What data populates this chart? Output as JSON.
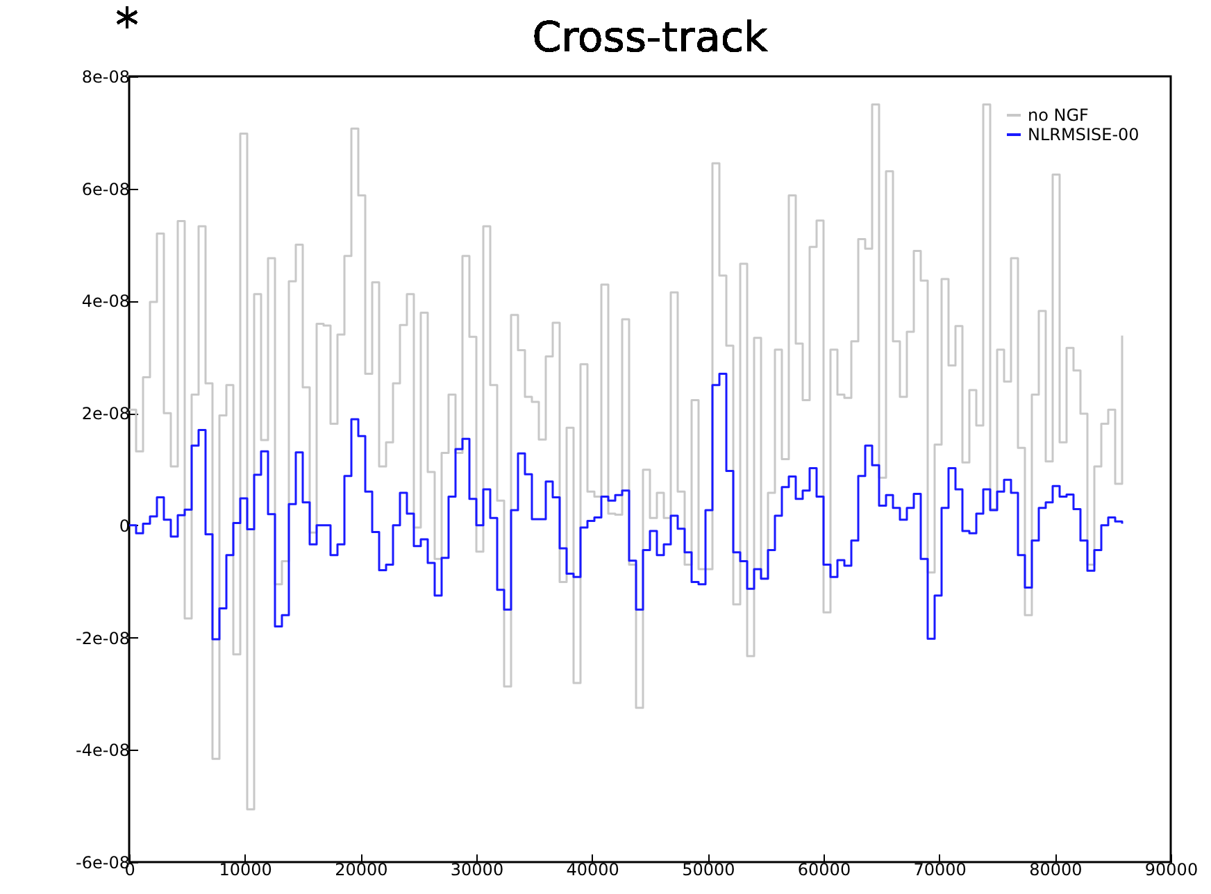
{
  "chart_data": {
    "type": "step",
    "title": "Cross-track",
    "annotations": [
      "*"
    ],
    "x": [
      0,
      600,
      1200,
      1800,
      2400,
      3000,
      3600,
      4200,
      4800,
      5400,
      6000,
      6600,
      7200,
      7800,
      8400,
      9000,
      9600,
      10200,
      10800,
      11400,
      12000,
      12600,
      13200,
      13800,
      14400,
      15000,
      15600,
      16200,
      16800,
      17400,
      18000,
      18600,
      19200,
      19800,
      20400,
      21000,
      21600,
      22200,
      22800,
      23400,
      24000,
      24600,
      25200,
      25800,
      26400,
      27000,
      27600,
      28200,
      28800,
      29400,
      30000,
      30600,
      31200,
      31800,
      32400,
      33000,
      33600,
      34200,
      34800,
      35400,
      36000,
      36600,
      37200,
      37800,
      38400,
      39000,
      39600,
      40200,
      40800,
      41400,
      42000,
      42600,
      43200,
      43800,
      44400,
      45000,
      45600,
      46200,
      46800,
      47400,
      48000,
      48600,
      49200,
      49800,
      50400,
      51000,
      51600,
      52200,
      52800,
      53400,
      54000,
      54600,
      55200,
      55800,
      56400,
      57000,
      57600,
      58200,
      58800,
      59400,
      60000,
      60600,
      61200,
      61800,
      62400,
      63000,
      63600,
      64200,
      64800,
      65400,
      66000,
      66600,
      67200,
      67800,
      68400,
      69000,
      69600,
      70200,
      70800,
      71400,
      72000,
      72600,
      73200,
      73800,
      74400,
      75000,
      75600,
      76200,
      76800,
      77400,
      78000,
      78600,
      79200,
      79800,
      80400,
      81000,
      81600,
      82200,
      82800,
      83400,
      84000,
      84600,
      85200,
      85800
    ],
    "series": [
      {
        "name": "no NGF",
        "color": "#c8c8c8",
        "values": [
          2.06e-08,
          1.32e-08,
          2.64e-08,
          3.98e-08,
          5.2e-08,
          2e-08,
          1.05e-08,
          5.42e-08,
          -1.66e-08,
          2.33e-08,
          5.33e-08,
          2.53e-08,
          -4.16e-08,
          1.96e-08,
          2.5e-08,
          -2.3e-08,
          6.98e-08,
          -5.06e-08,
          4.12e-08,
          1.52e-08,
          4.76e-08,
          -1.05e-08,
          -6.4e-09,
          4.35e-08,
          5e-08,
          2.46e-08,
          -1.3e-09,
          3.59e-08,
          3.56e-08,
          1.81e-08,
          3.4e-08,
          4.8e-08,
          7.07e-08,
          5.88e-08,
          2.7e-08,
          4.33e-08,
          1.05e-08,
          1.48e-08,
          2.53e-08,
          3.57e-08,
          4.12e-08,
          -4e-10,
          3.79e-08,
          9.5e-09,
          -6e-09,
          1.29e-08,
          2.33e-08,
          1.29e-08,
          4.8e-08,
          3.36e-08,
          -4.7e-09,
          5.33e-08,
          2.5e-08,
          4.4e-09,
          -2.87e-08,
          3.75e-08,
          3.12e-08,
          2.29e-08,
          2.2e-08,
          1.53e-08,
          3.01e-08,
          3.61e-08,
          -1.01e-08,
          1.74e-08,
          -2.81e-08,
          2.87e-08,
          6e-09,
          5.1e-09,
          4.29e-08,
          2.1e-09,
          1.9e-09,
          3.67e-08,
          -7e-09,
          -3.25e-08,
          9.9e-09,
          1.3e-09,
          5.8e-09,
          1.3e-09,
          4.15e-08,
          6e-09,
          -7e-09,
          2.23e-08,
          -7.8e-09,
          -7.8e-09,
          6.45e-08,
          4.45e-08,
          3.2e-08,
          -1.41e-08,
          4.66e-08,
          -2.33e-08,
          3.34e-08,
          -9.5e-09,
          5.8e-09,
          3.13e-08,
          1.18e-08,
          5.88e-08,
          3.24e-08,
          2.23e-08,
          4.96e-08,
          5.43e-08,
          -1.55e-08,
          3.13e-08,
          2.33e-08,
          2.27e-08,
          3.28e-08,
          5.1e-08,
          4.93e-08,
          7.5e-08,
          8.5e-09,
          6.31e-08,
          3.28e-08,
          2.29e-08,
          3.45e-08,
          4.89e-08,
          4.36e-08,
          -8.4e-09,
          1.44e-08,
          4.39e-08,
          2.85e-08,
          3.55e-08,
          1.12e-08,
          2.41e-08,
          1.78e-08,
          7.5e-08,
          2.9e-09,
          3.13e-08,
          2.56e-08,
          4.76e-08,
          1.38e-08,
          -1.6e-08,
          2.33e-08,
          3.82e-08,
          1.14e-08,
          6.25e-08,
          1.48e-08,
          3.16e-08,
          2.76e-08,
          1.99e-08,
          -7e-09,
          1.05e-08,
          1.81e-08,
          2.06e-08,
          7.4e-09,
          3.38e-08
        ]
      },
      {
        "name": "NLRMSISE-00",
        "color": "#1a1aff",
        "values": [
          0,
          -1.4e-09,
          3e-10,
          1.6e-09,
          5e-09,
          1e-09,
          -2e-09,
          1.8e-09,
          2.8e-09,
          1.42e-08,
          1.7e-08,
          -1.6e-09,
          -2.03e-08,
          -1.48e-08,
          -5.3e-09,
          4e-10,
          4.8e-09,
          -7e-10,
          9e-09,
          1.32e-08,
          2e-09,
          -1.8e-08,
          -1.6e-08,
          3.8e-09,
          1.3e-08,
          4.1e-09,
          -3.4e-09,
          0,
          0,
          -5.3e-09,
          -3.4e-09,
          8.8e-09,
          1.89e-08,
          1.59e-08,
          6e-09,
          -1.2e-09,
          -8e-09,
          -7e-09,
          0,
          5.8e-09,
          2.1e-09,
          -3.7e-09,
          -2.5e-09,
          -6.7e-09,
          -1.25e-08,
          -5.8e-09,
          5.1e-09,
          1.36e-08,
          1.54e-08,
          4.7e-09,
          0,
          6.4e-09,
          1.3e-09,
          -1.15e-08,
          -1.5e-08,
          2.7e-09,
          1.28e-08,
          9.1e-09,
          1.1e-09,
          1.1e-09,
          7.8e-09,
          5e-09,
          -4.1e-09,
          -8.6e-09,
          -9.2e-09,
          -4e-10,
          8e-10,
          1.4e-09,
          5.1e-09,
          4.4e-09,
          5.4e-09,
          6.2e-09,
          -6.3e-09,
          -1.5e-08,
          -4.4e-09,
          -1e-09,
          -5.3e-09,
          -3.4e-09,
          1.7e-09,
          -6e-10,
          -4.8e-09,
          -1.01e-08,
          -1.05e-08,
          2.7e-09,
          2.5e-08,
          2.7e-08,
          9.7e-09,
          -4.8e-09,
          -6.4e-09,
          -1.13e-08,
          -7.8e-09,
          -9.5e-09,
          -4.4e-09,
          1.7e-09,
          6.8e-09,
          8.7e-09,
          4.7e-09,
          6.2e-09,
          1.02e-08,
          5.1e-09,
          -7e-09,
          -9.2e-09,
          -6.2e-09,
          -7.2e-09,
          -2.7e-09,
          8.8e-09,
          1.42e-08,
          1.07e-08,
          3.5e-09,
          5.4e-09,
          3.1e-09,
          1e-09,
          3.1e-09,
          5.6e-09,
          -6e-09,
          -2.02e-08,
          -1.25e-08,
          3.1e-09,
          1.02e-08,
          6.4e-09,
          -1e-09,
          -1.4e-09,
          2.1e-09,
          6.4e-09,
          2.7e-09,
          6e-09,
          8.1e-09,
          5.8e-09,
          -5.3e-09,
          -1.11e-08,
          -2.7e-09,
          3.1e-09,
          4.1e-09,
          7e-09,
          5.1e-09,
          5.5e-09,
          2.9e-09,
          -2.7e-09,
          -8.1e-09,
          -4.4e-09,
          0,
          1.4e-09,
          7e-10,
          3e-10
        ]
      }
    ],
    "xlim": [
      0,
      90000
    ],
    "xticks": [
      0,
      10000,
      20000,
      30000,
      40000,
      50000,
      60000,
      70000,
      80000,
      90000
    ],
    "ylim": [
      -6e-08,
      8e-08
    ],
    "yticks": [
      {
        "value": -6e-08,
        "label": "-6e-08"
      },
      {
        "value": -4e-08,
        "label": "-4e-08"
      },
      {
        "value": -2e-08,
        "label": "-2e-08"
      },
      {
        "value": 0,
        "label": "0"
      },
      {
        "value": 2e-08,
        "label": "2e-08"
      },
      {
        "value": 4e-08,
        "label": "4e-08"
      },
      {
        "value": 6e-08,
        "label": "6e-08"
      },
      {
        "value": 8e-08,
        "label": "8e-08"
      }
    ],
    "legend": "top right",
    "marker": "none",
    "line_style": "solid",
    "grid": false
  }
}
